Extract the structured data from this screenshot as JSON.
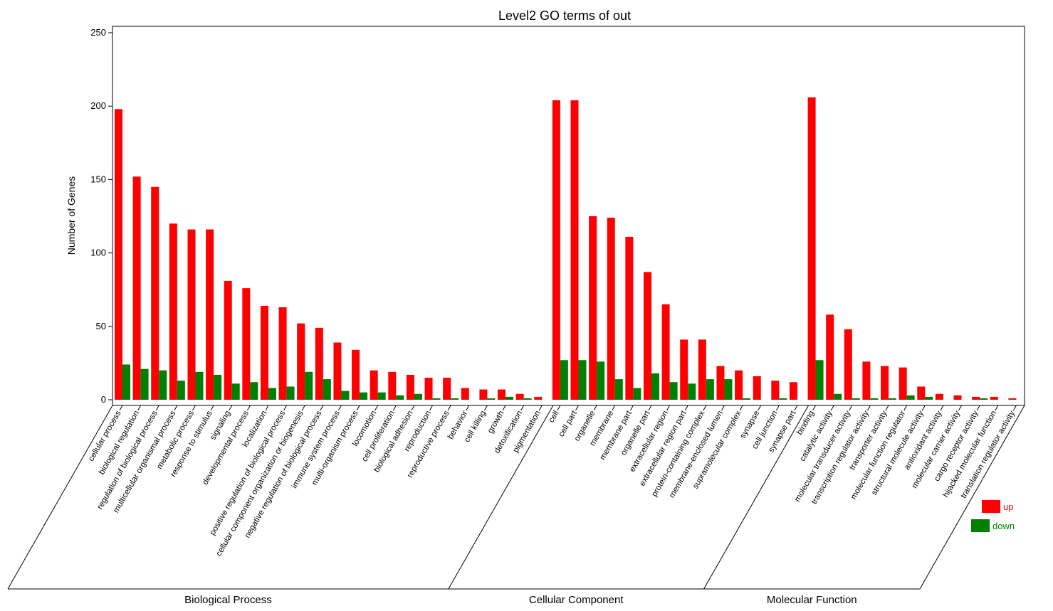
{
  "chart_data": {
    "type": "bar",
    "title": "Level2 GO terms of out",
    "xlabel": "",
    "ylabel": "Number of Genes",
    "ylim": [
      0,
      250
    ],
    "yticks": [
      0,
      50,
      100,
      150,
      200,
      250
    ],
    "grid": false,
    "legend_position": "right",
    "colors": {
      "up": "#ff0000",
      "down": "#008000",
      "axis": "#000000"
    },
    "series": [
      {
        "name": "up",
        "color": "#ff0000"
      },
      {
        "name": "down",
        "color": "#008000"
      }
    ],
    "groups": [
      {
        "name": "Biological Process",
        "categories": [
          {
            "label": "cellular process",
            "up": 198,
            "down": 24
          },
          {
            "label": "biological regulation",
            "up": 152,
            "down": 21
          },
          {
            "label": "regulation of biological process",
            "up": 145,
            "down": 20
          },
          {
            "label": "multicellular organismal process",
            "up": 120,
            "down": 13
          },
          {
            "label": "metabolic process",
            "up": 116,
            "down": 19
          },
          {
            "label": "response to stimulus",
            "up": 116,
            "down": 17
          },
          {
            "label": "signaling",
            "up": 81,
            "down": 11
          },
          {
            "label": "developmental process",
            "up": 76,
            "down": 12
          },
          {
            "label": "localization",
            "up": 64,
            "down": 8
          },
          {
            "label": "positive regulation of biological process",
            "up": 63,
            "down": 9
          },
          {
            "label": "cellular component organization or biogenesis",
            "up": 52,
            "down": 19
          },
          {
            "label": "negative regulation of biological process",
            "up": 49,
            "down": 14
          },
          {
            "label": "immune system process",
            "up": 39,
            "down": 6
          },
          {
            "label": "multi-organism process",
            "up": 34,
            "down": 5
          },
          {
            "label": "locomotion",
            "up": 20,
            "down": 5
          },
          {
            "label": "cell proliferation",
            "up": 19,
            "down": 3
          },
          {
            "label": "biological adhesion",
            "up": 17,
            "down": 4
          },
          {
            "label": "reproduction",
            "up": 15,
            "down": 1
          },
          {
            "label": "reproductive process",
            "up": 15,
            "down": 1
          },
          {
            "label": "behavior",
            "up": 8,
            "down": 0
          },
          {
            "label": "cell killing",
            "up": 7,
            "down": 1
          },
          {
            "label": "growth",
            "up": 7,
            "down": 2
          },
          {
            "label": "detoxification",
            "up": 4,
            "down": 1
          },
          {
            "label": "pigmentation",
            "up": 2,
            "down": 0
          }
        ]
      },
      {
        "name": "Cellular Component",
        "categories": [
          {
            "label": "cell",
            "up": 204,
            "down": 27
          },
          {
            "label": "cell part",
            "up": 204,
            "down": 27
          },
          {
            "label": "organelle",
            "up": 125,
            "down": 26
          },
          {
            "label": "membrane",
            "up": 124,
            "down": 14
          },
          {
            "label": "membrane part",
            "up": 111,
            "down": 8
          },
          {
            "label": "organelle part",
            "up": 87,
            "down": 18
          },
          {
            "label": "extracellular region",
            "up": 65,
            "down": 12
          },
          {
            "label": "extracellular region part",
            "up": 41,
            "down": 11
          },
          {
            "label": "protein-containing complex",
            "up": 41,
            "down": 14
          },
          {
            "label": "membrane-enclosed lumen",
            "up": 23,
            "down": 14
          },
          {
            "label": "supramolecular complex",
            "up": 20,
            "down": 1
          },
          {
            "label": "synapse",
            "up": 16,
            "down": 0
          },
          {
            "label": "cell junction",
            "up": 13,
            "down": 1
          },
          {
            "label": "synapse part",
            "up": 12,
            "down": 0
          }
        ]
      },
      {
        "name": "Molecular Function",
        "categories": [
          {
            "label": "binding",
            "up": 206,
            "down": 27
          },
          {
            "label": "catalytic activity",
            "up": 58,
            "down": 4
          },
          {
            "label": "molecular transducer activity",
            "up": 48,
            "down": 1
          },
          {
            "label": "transcription regulator activity",
            "up": 26,
            "down": 1
          },
          {
            "label": "transporter activity",
            "up": 23,
            "down": 1
          },
          {
            "label": "molecular function regulator",
            "up": 22,
            "down": 3
          },
          {
            "label": "structural molecule activity",
            "up": 9,
            "down": 2
          },
          {
            "label": "antioxidant activity",
            "up": 4,
            "down": 0
          },
          {
            "label": "molecular carrier activity",
            "up": 3,
            "down": 0
          },
          {
            "label": "cargo receptor activity",
            "up": 2,
            "down": 1
          },
          {
            "label": "hijacked molecular function",
            "up": 2,
            "down": 0
          },
          {
            "label": "translation regulator activity",
            "up": 1,
            "down": 0
          }
        ]
      }
    ]
  }
}
